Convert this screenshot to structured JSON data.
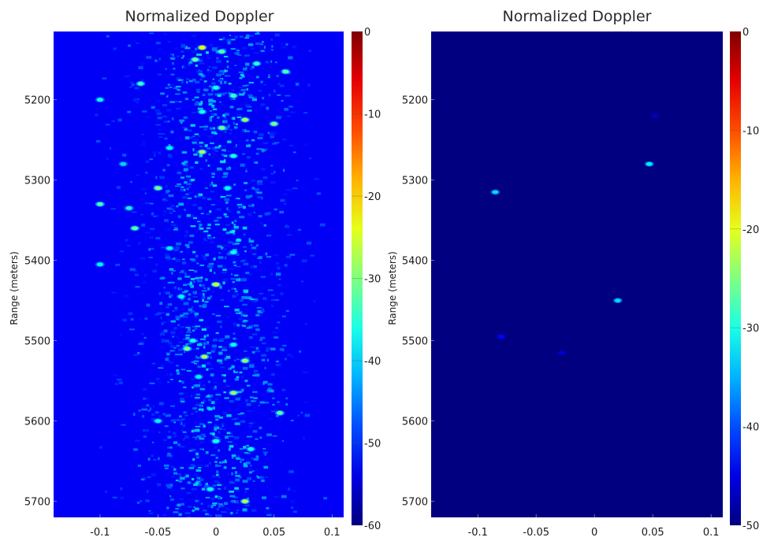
{
  "chart_data": [
    {
      "type": "heatmap",
      "title": "Normalized Doppler",
      "xlabel": "",
      "ylabel": "Range (meters)",
      "xlim": [
        -0.14,
        0.11
      ],
      "ylim": [
        5115,
        5720
      ],
      "y_inverted": true,
      "xticks": [
        -0.1,
        -0.05,
        0,
        0.05,
        0.1
      ],
      "xtick_labels": [
        "-0.1",
        "-0.05",
        "0",
        "0.05",
        "0.1"
      ],
      "yticks": [
        5200,
        5300,
        5400,
        5500,
        5600,
        5700
      ],
      "ytick_labels": [
        "5200",
        "5300",
        "5400",
        "5500",
        "5600",
        "5700"
      ],
      "colorbar": {
        "colormap": "jet",
        "range": [
          -60,
          0
        ],
        "ticks": [
          0,
          -10,
          -20,
          -30,
          -40,
          -50,
          -60
        ],
        "tick_labels": [
          "0",
          "-10",
          "-20",
          "-30",
          "-40",
          "-50",
          "-60"
        ]
      },
      "background_level_db": -53,
      "hotspots": [
        {
          "x": -0.012,
          "y": 5135,
          "db": -23
        },
        {
          "x": -0.018,
          "y": 5150,
          "db": -31
        },
        {
          "x": 0.005,
          "y": 5140,
          "db": -33
        },
        {
          "x": 0.035,
          "y": 5155,
          "db": -35
        },
        {
          "x": 0.06,
          "y": 5165,
          "db": -33
        },
        {
          "x": -0.065,
          "y": 5180,
          "db": -34
        },
        {
          "x": 0.0,
          "y": 5185,
          "db": -36
        },
        {
          "x": 0.015,
          "y": 5195,
          "db": -34
        },
        {
          "x": -0.1,
          "y": 5200,
          "db": -37
        },
        {
          "x": -0.012,
          "y": 5215,
          "db": -36
        },
        {
          "x": 0.025,
          "y": 5225,
          "db": -28
        },
        {
          "x": 0.05,
          "y": 5230,
          "db": -30
        },
        {
          "x": 0.005,
          "y": 5235,
          "db": -31
        },
        {
          "x": -0.04,
          "y": 5260,
          "db": -38
        },
        {
          "x": -0.012,
          "y": 5265,
          "db": -28
        },
        {
          "x": 0.015,
          "y": 5270,
          "db": -36
        },
        {
          "x": -0.08,
          "y": 5280,
          "db": -40
        },
        {
          "x": -0.05,
          "y": 5310,
          "db": -30
        },
        {
          "x": 0.01,
          "y": 5310,
          "db": -37
        },
        {
          "x": -0.1,
          "y": 5330,
          "db": -33
        },
        {
          "x": -0.075,
          "y": 5335,
          "db": -37
        },
        {
          "x": -0.07,
          "y": 5360,
          "db": -32
        },
        {
          "x": -0.04,
          "y": 5385,
          "db": -38
        },
        {
          "x": 0.015,
          "y": 5390,
          "db": -37
        },
        {
          "x": -0.1,
          "y": 5405,
          "db": -38
        },
        {
          "x": 0.0,
          "y": 5430,
          "db": -26
        },
        {
          "x": -0.03,
          "y": 5445,
          "db": -38
        },
        {
          "x": -0.02,
          "y": 5500,
          "db": -36
        },
        {
          "x": 0.015,
          "y": 5505,
          "db": -37
        },
        {
          "x": -0.025,
          "y": 5510,
          "db": -30
        },
        {
          "x": -0.01,
          "y": 5520,
          "db": -27
        },
        {
          "x": 0.025,
          "y": 5525,
          "db": -29
        },
        {
          "x": -0.015,
          "y": 5545,
          "db": -38
        },
        {
          "x": 0.015,
          "y": 5565,
          "db": -29
        },
        {
          "x": 0.055,
          "y": 5590,
          "db": -32
        },
        {
          "x": -0.05,
          "y": 5600,
          "db": -38
        },
        {
          "x": 0.0,
          "y": 5625,
          "db": -36
        },
        {
          "x": 0.03,
          "y": 5635,
          "db": -37
        },
        {
          "x": 0.025,
          "y": 5700,
          "db": -27
        },
        {
          "x": -0.005,
          "y": 5685,
          "db": -37
        }
      ]
    },
    {
      "type": "heatmap",
      "title": "Normalized Doppler",
      "xlabel": "",
      "ylabel": "Range (meters)",
      "xlim": [
        -0.14,
        0.11
      ],
      "ylim": [
        5115,
        5720
      ],
      "y_inverted": true,
      "xticks": [
        -0.1,
        -0.05,
        0,
        0.05,
        0.1
      ],
      "xtick_labels": [
        "-0.1",
        "-0.05",
        "0",
        "0.05",
        "0.1"
      ],
      "yticks": [
        5200,
        5300,
        5400,
        5500,
        5600,
        5700
      ],
      "ytick_labels": [
        "5200",
        "5300",
        "5400",
        "5500",
        "5600",
        "5700"
      ],
      "colorbar": {
        "colormap": "jet",
        "range": [
          -50,
          0
        ],
        "ticks": [
          0,
          -10,
          -20,
          -30,
          -40,
          -50
        ],
        "tick_labels": [
          "0",
          "-10",
          "-20",
          "-30",
          "-40",
          "-50"
        ]
      },
      "background_level_db": -50,
      "hotspots": [
        {
          "x": -0.085,
          "y": 5315,
          "db": -33
        },
        {
          "x": 0.047,
          "y": 5280,
          "db": -32
        },
        {
          "x": 0.02,
          "y": 5450,
          "db": -33
        },
        {
          "x": -0.08,
          "y": 5495,
          "db": -44
        },
        {
          "x": -0.028,
          "y": 5515,
          "db": -46
        },
        {
          "x": 0.052,
          "y": 5220,
          "db": -47
        }
      ]
    }
  ]
}
